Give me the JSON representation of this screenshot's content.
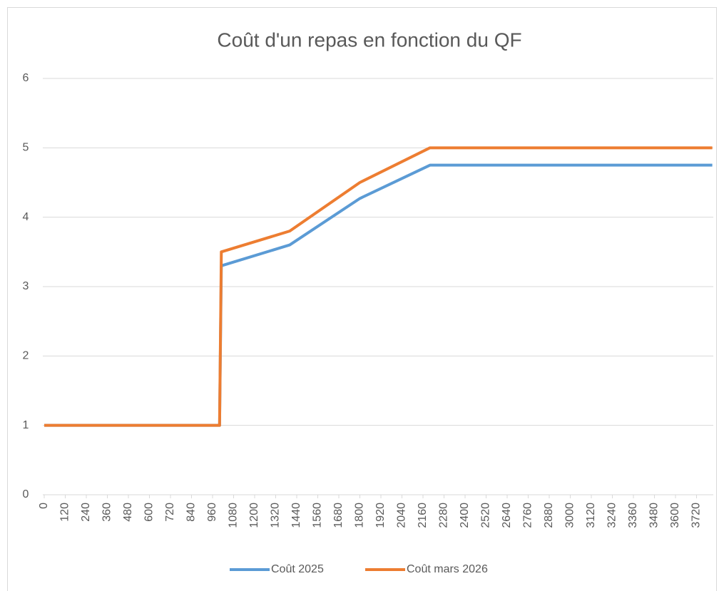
{
  "chart_data": {
    "type": "line",
    "title": "Coût d'un repas en fonction du QF",
    "x": [
      0,
      1000,
      1010,
      1400,
      1800,
      2200,
      3810
    ],
    "series": [
      {
        "name": "Coût 2025",
        "color": "#5b9bd5",
        "values": [
          1,
          1,
          3.3,
          3.6,
          4.27,
          4.75,
          4.75
        ]
      },
      {
        "name": "Coût mars 2026",
        "color": "#ed7d31",
        "values": [
          1,
          1,
          3.5,
          3.8,
          4.5,
          5,
          5
        ]
      }
    ],
    "xlim": [
      0,
      3810
    ],
    "xticks": [
      0,
      120,
      240,
      360,
      480,
      600,
      720,
      840,
      960,
      1080,
      1200,
      1320,
      1440,
      1560,
      1680,
      1800,
      1920,
      2040,
      2160,
      2280,
      2400,
      2520,
      2640,
      2760,
      2880,
      3000,
      3120,
      3240,
      3360,
      3480,
      3600,
      3720
    ],
    "ylim": [
      0,
      6
    ],
    "yticks": [
      0,
      1,
      2,
      3,
      4,
      5,
      6
    ],
    "grid": true,
    "legend": "bottom"
  }
}
